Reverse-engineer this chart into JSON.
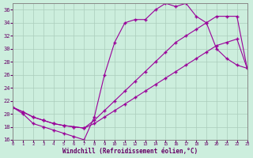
{
  "bg_color": "#cceedd",
  "line_color": "#990099",
  "xlabel": "Windchill (Refroidissement éolien,°C)",
  "xlim": [
    0,
    23
  ],
  "ylim": [
    16,
    37
  ],
  "xticks": [
    0,
    1,
    2,
    3,
    4,
    5,
    6,
    7,
    8,
    9,
    10,
    11,
    12,
    13,
    14,
    15,
    16,
    17,
    18,
    19,
    20,
    21,
    22,
    23
  ],
  "yticks": [
    16,
    18,
    20,
    22,
    24,
    26,
    28,
    30,
    32,
    34,
    36
  ],
  "line1_x": [
    0,
    1,
    2,
    3,
    4,
    5,
    6,
    7,
    8,
    9,
    10,
    11,
    12,
    13,
    14,
    15,
    16,
    17,
    18,
    19,
    20,
    21,
    22,
    23
  ],
  "line1_y": [
    21,
    20,
    18.5,
    18,
    17.5,
    17,
    16.5,
    16,
    19.5,
    26,
    31,
    34,
    34.5,
    34.5,
    36,
    37,
    36.5,
    37,
    35,
    34,
    30,
    28.5,
    27.5,
    27
  ],
  "line2_x": [
    0,
    1,
    2,
    3,
    4,
    5,
    6,
    7,
    8,
    9,
    10,
    11,
    12,
    13,
    14,
    15,
    16,
    17,
    18,
    19,
    20,
    21,
    22,
    23
  ],
  "line2_y": [
    21,
    20.3,
    19.5,
    19,
    18.5,
    18.2,
    18,
    17.8,
    19,
    20.5,
    22,
    23.5,
    25,
    26.5,
    28,
    29.5,
    31,
    32,
    33,
    34,
    35,
    35,
    35,
    27
  ],
  "line3_x": [
    0,
    1,
    2,
    3,
    4,
    5,
    6,
    7,
    8,
    9,
    10,
    11,
    12,
    13,
    14,
    15,
    16,
    17,
    18,
    19,
    20,
    21,
    22,
    23
  ],
  "line3_y": [
    21,
    20.3,
    19.5,
    19,
    18.5,
    18.2,
    18,
    17.8,
    18.5,
    19.5,
    20.5,
    21.5,
    22.5,
    23.5,
    24.5,
    25.5,
    26.5,
    27.5,
    28.5,
    29.5,
    30.5,
    31,
    31.5,
    27
  ]
}
